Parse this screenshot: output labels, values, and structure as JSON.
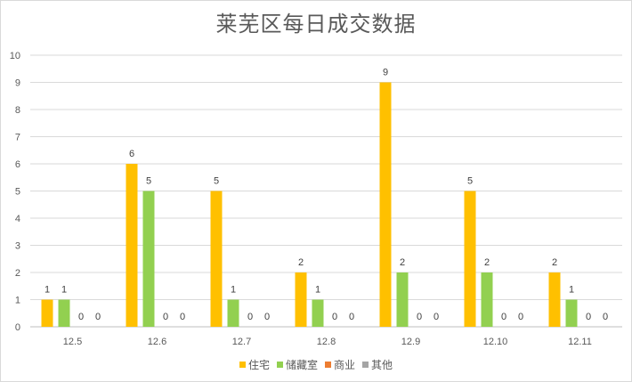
{
  "chart_data": {
    "type": "bar",
    "title": "莱芜区每日成交数据",
    "categories": [
      "12.5",
      "12.6",
      "12.7",
      "12.8",
      "12.9",
      "12.10",
      "12.11"
    ],
    "series": [
      {
        "name": "住宅",
        "color": "#FFC000",
        "values": [
          1,
          6,
          5,
          2,
          9,
          5,
          2
        ]
      },
      {
        "name": "储藏室",
        "color": "#92D050",
        "values": [
          1,
          5,
          1,
          1,
          2,
          2,
          1
        ]
      },
      {
        "name": "商业",
        "color": "#ED7D31",
        "values": [
          0,
          0,
          0,
          0,
          0,
          0,
          0
        ]
      },
      {
        "name": "其他",
        "color": "#A5A5A5",
        "values": [
          0,
          0,
          0,
          0,
          0,
          0,
          0
        ]
      }
    ],
    "yticks": [
      "0",
      "1",
      "2",
      "3",
      "4",
      "5",
      "6",
      "7",
      "8",
      "9",
      "10"
    ],
    "ylim": [
      0,
      10
    ],
    "grid": true,
    "data_labels": true,
    "legend_position": "bottom"
  }
}
